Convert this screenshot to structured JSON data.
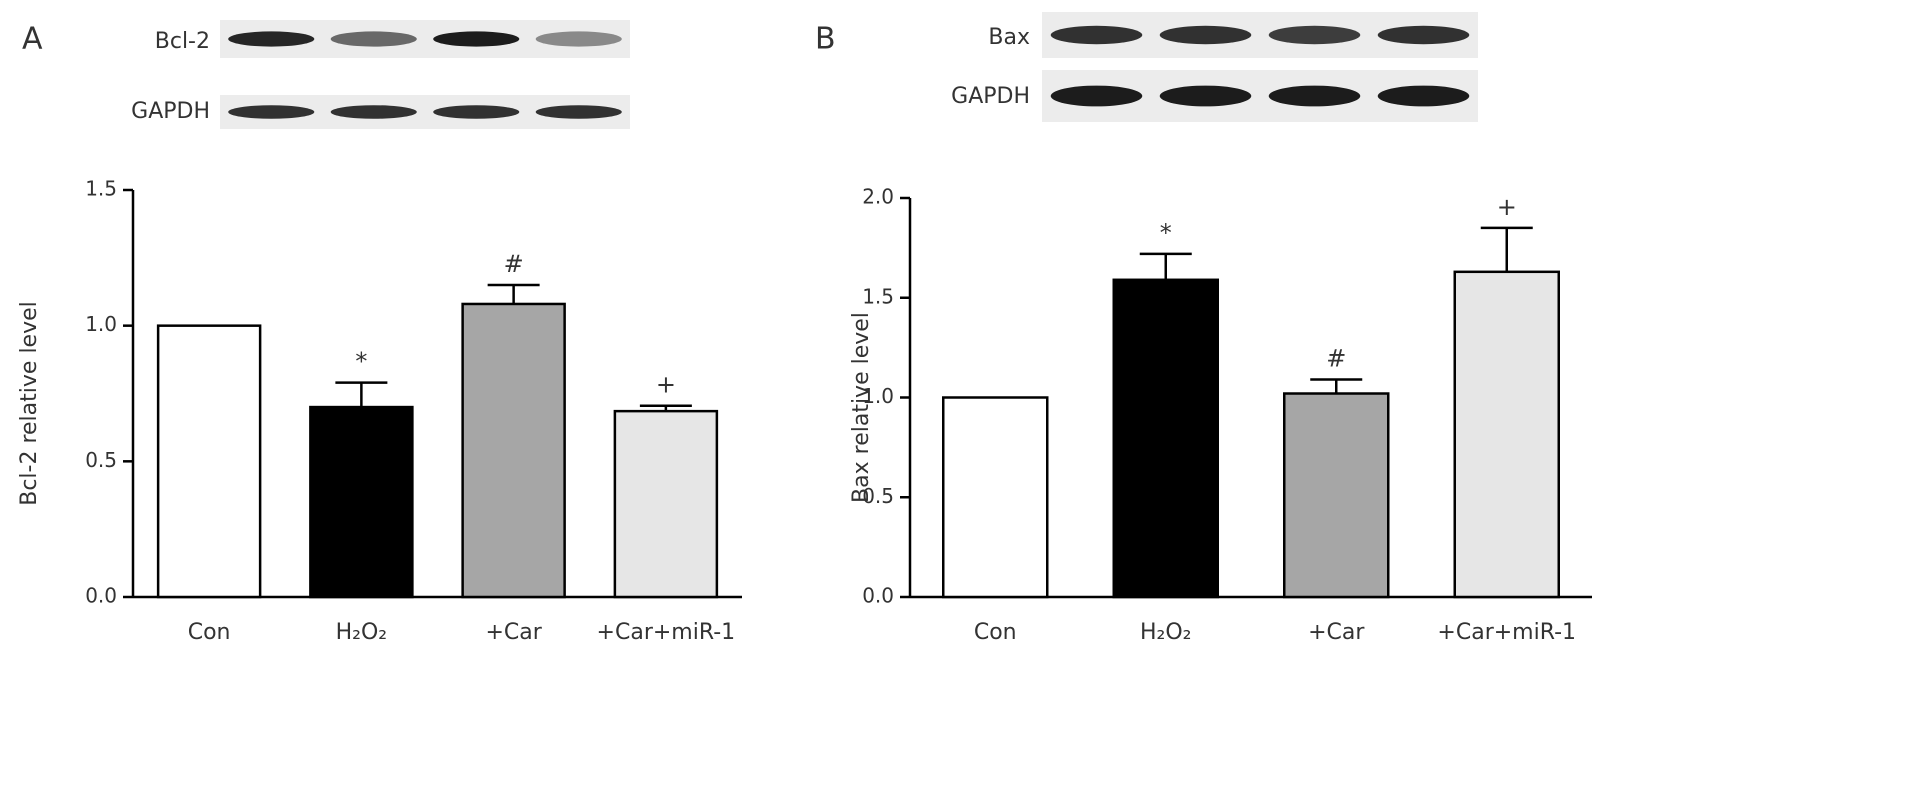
{
  "chart_data": [
    {
      "type": "bar",
      "panel": "A",
      "blot_labels": [
        "Bcl-2",
        "GAPDH"
      ],
      "ylabel": "Bcl-2 relative level",
      "categories": [
        "Con",
        "H₂O₂",
        "+Car",
        "+Car+miR-1"
      ],
      "values": [
        1.0,
        0.7,
        1.08,
        0.685
      ],
      "errors": [
        0,
        0.09,
        0.07,
        0.02
      ],
      "annotations": [
        null,
        "*",
        "#",
        "+"
      ],
      "colors": [
        "#ffffff",
        "#000000",
        "#a6a6a6",
        "#e6e6e6"
      ],
      "ylim": [
        0,
        1.5
      ],
      "yticks": [
        {
          "value": 0,
          "label": "0.0"
        },
        0.5,
        {
          "value": 1,
          "label": "1.0"
        },
        1.5
      ]
    },
    {
      "type": "bar",
      "panel": "B",
      "blot_labels": [
        "Bax",
        "GAPDH"
      ],
      "ylabel": "Bax relative level",
      "categories": [
        "Con",
        "H₂O₂",
        "+Car",
        "+Car+miR-1"
      ],
      "values": [
        1.0,
        1.59,
        1.02,
        1.63
      ],
      "errors": [
        0,
        0.13,
        0.07,
        0.22
      ],
      "annotations": [
        null,
        "*",
        "#",
        "+"
      ],
      "colors": [
        "#ffffff",
        "#000000",
        "#a6a6a6",
        "#e6e6e6"
      ],
      "ylim": [
        0,
        2
      ],
      "yticks": [
        {
          "value": 0,
          "label": "0.0"
        },
        0.5,
        {
          "value": 1,
          "label": "1.0"
        },
        1.5,
        {
          "value": 2,
          "label": "2.0"
        }
      ]
    }
  ]
}
